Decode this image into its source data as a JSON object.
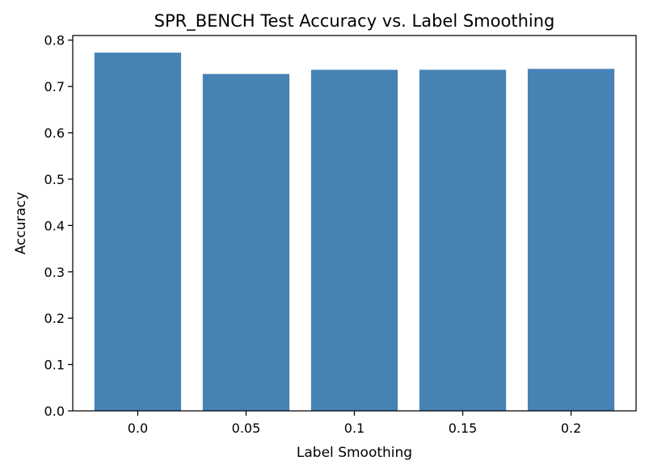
{
  "chart_data": {
    "type": "bar",
    "title": "SPR_BENCH Test Accuracy vs. Label Smoothing",
    "xlabel": "Label Smoothing",
    "ylabel": "Accuracy",
    "categories": [
      "0.0",
      "0.05",
      "0.1",
      "0.15",
      "0.2"
    ],
    "values": [
      0.773,
      0.727,
      0.736,
      0.736,
      0.738
    ],
    "ylim": [
      0,
      0.81
    ],
    "yticks": [
      0.0,
      0.1,
      0.2,
      0.3,
      0.4,
      0.5,
      0.6,
      0.7,
      0.8
    ],
    "ytick_labels": [
      "0.0",
      "0.1",
      "0.2",
      "0.3",
      "0.4",
      "0.5",
      "0.6",
      "0.7",
      "0.8"
    ],
    "bar_color": "#4682b4",
    "grid": false,
    "legend": "none"
  }
}
